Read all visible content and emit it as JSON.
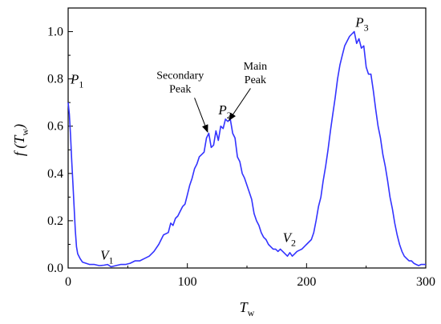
{
  "chart_data": {
    "type": "line",
    "xlabel": {
      "main": "T",
      "sub": "w"
    },
    "ylabel": {
      "prefix": "f (",
      "main": "T",
      "sub": "w",
      "suffix": ")"
    },
    "xlim": [
      0,
      300
    ],
    "ylim": [
      0,
      1.1
    ],
    "xticks": [
      0,
      100,
      200,
      300
    ],
    "yticks": [
      0.0,
      0.2,
      0.4,
      0.6,
      0.8,
      1.0
    ],
    "ytick_labels": [
      "0.0",
      "0.2",
      "0.4",
      "0.6",
      "0.8",
      "1.0"
    ],
    "grid": false,
    "series": [
      {
        "color": "#3333ff",
        "x": [
          0,
          1,
          2,
          3,
          4,
          5,
          6,
          7,
          8,
          10,
          12,
          15,
          18,
          22,
          26,
          30,
          33,
          36,
          40,
          44,
          48,
          52,
          56,
          60,
          64,
          68,
          72,
          76,
          80,
          84,
          86,
          88,
          90,
          92,
          94,
          96,
          98,
          100,
          102,
          104,
          106,
          108,
          110,
          112,
          114,
          116,
          118,
          120,
          122,
          124,
          126,
          128,
          130,
          132,
          134,
          136,
          138,
          140,
          142,
          144,
          146,
          148,
          150,
          152,
          154,
          156,
          158,
          160,
          162,
          164,
          166,
          168,
          170,
          172,
          174,
          176,
          178,
          180,
          182,
          184,
          186,
          188,
          190,
          192,
          194,
          196,
          198,
          200,
          202,
          204,
          206,
          208,
          210,
          212,
          214,
          216,
          218,
          220,
          222,
          224,
          226,
          228,
          230,
          232,
          234,
          236,
          238,
          240,
          242,
          244,
          246,
          248,
          250,
          252,
          254,
          256,
          258,
          260,
          262,
          264,
          266,
          268,
          270,
          272,
          274,
          276,
          278,
          280,
          282,
          284,
          286,
          288,
          290,
          292,
          294,
          296,
          300
        ],
        "y": [
          0.7,
          0.65,
          0.56,
          0.45,
          0.36,
          0.26,
          0.16,
          0.09,
          0.06,
          0.04,
          0.025,
          0.02,
          0.015,
          0.015,
          0.01,
          0.012,
          0.015,
          0.005,
          0.01,
          0.015,
          0.015,
          0.02,
          0.03,
          0.03,
          0.04,
          0.05,
          0.07,
          0.1,
          0.14,
          0.15,
          0.19,
          0.18,
          0.21,
          0.22,
          0.24,
          0.26,
          0.27,
          0.31,
          0.35,
          0.38,
          0.42,
          0.44,
          0.47,
          0.48,
          0.49,
          0.55,
          0.57,
          0.51,
          0.52,
          0.58,
          0.54,
          0.6,
          0.59,
          0.63,
          0.62,
          0.63,
          0.57,
          0.55,
          0.47,
          0.45,
          0.4,
          0.38,
          0.35,
          0.32,
          0.29,
          0.23,
          0.2,
          0.18,
          0.15,
          0.13,
          0.12,
          0.1,
          0.09,
          0.08,
          0.08,
          0.07,
          0.08,
          0.07,
          0.06,
          0.05,
          0.065,
          0.05,
          0.06,
          0.07,
          0.075,
          0.08,
          0.09,
          0.1,
          0.11,
          0.12,
          0.15,
          0.2,
          0.26,
          0.3,
          0.37,
          0.43,
          0.5,
          0.58,
          0.65,
          0.72,
          0.8,
          0.86,
          0.9,
          0.94,
          0.96,
          0.98,
          0.99,
          1.0,
          0.95,
          0.97,
          0.93,
          0.94,
          0.85,
          0.82,
          0.82,
          0.75,
          0.67,
          0.6,
          0.55,
          0.48,
          0.43,
          0.37,
          0.3,
          0.25,
          0.19,
          0.14,
          0.1,
          0.07,
          0.05,
          0.04,
          0.03,
          0.03,
          0.02,
          0.015,
          0.01,
          0.015,
          0.015
        ]
      }
    ],
    "annotations": [
      {
        "main": "P",
        "sub": "1",
        "x": 2,
        "y": 0.78
      },
      {
        "main": "V",
        "sub": "1",
        "x": 27,
        "y": 0.035
      },
      {
        "main": "P",
        "sub": "2",
        "x": 126,
        "y": 0.65
      },
      {
        "main": "V",
        "sub": "2",
        "x": 180,
        "y": 0.11
      },
      {
        "main": "P",
        "sub": "3",
        "x": 241,
        "y": 1.02
      }
    ],
    "callouts": [
      {
        "lines": [
          "Secondary",
          "Peak"
        ],
        "text_x": 94,
        "text_y": 0.8,
        "arrow_from": [
          106,
          0.72
        ],
        "arrow_to": [
          117,
          0.575
        ]
      },
      {
        "lines": [
          "Main",
          "Peak"
        ],
        "text_x": 157,
        "text_y": 0.84,
        "arrow_from": [
          153,
          0.76
        ],
        "arrow_to": [
          135,
          0.625
        ]
      }
    ]
  }
}
